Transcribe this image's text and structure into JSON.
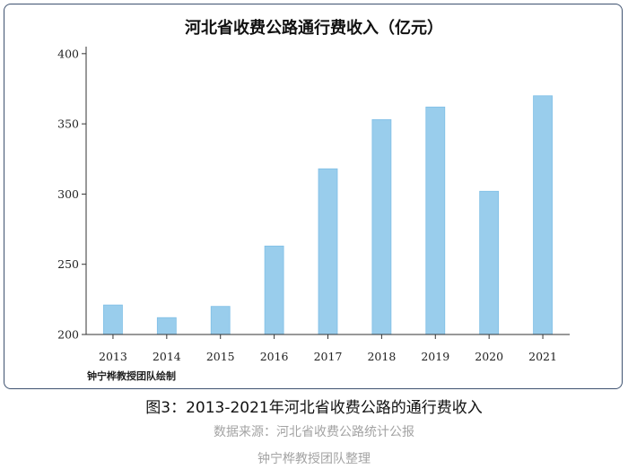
{
  "chart_data": {
    "type": "bar",
    "title": "河北省收费公路通行费收入（亿元）",
    "categories": [
      "2013",
      "2014",
      "2015",
      "2016",
      "2017",
      "2018",
      "2019",
      "2020",
      "2021"
    ],
    "values": [
      221,
      212,
      220,
      263,
      318,
      353,
      362,
      302,
      370
    ],
    "ylim": [
      200,
      405
    ],
    "yticks": [
      200,
      250,
      300,
      350,
      400
    ],
    "bar_color": "#99cdec",
    "bar_edge_color": "#7fbfe6",
    "grid": false
  },
  "credit": "钟宁桦教授团队绘制",
  "caption": {
    "main": "图3：2013-2021年河北省收费公路的通行费收入",
    "source": "数据来源：河北省收费公路统计公报",
    "team": "钟宁桦教授团队整理"
  },
  "colors": {
    "frame_border": "#3e5270",
    "axis": "#333333"
  }
}
